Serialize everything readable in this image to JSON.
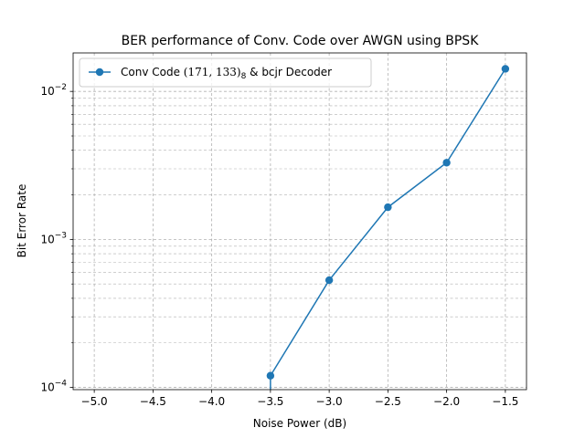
{
  "chart_data": {
    "type": "line",
    "title": "BER performance of Conv. Code over AWGN using BPSK",
    "xlabel": "Noise Power (dB)",
    "ylabel": "Bit Error Rate",
    "x_scale": "linear",
    "y_scale": "log",
    "xlim": [
      -5.18,
      -1.32
    ],
    "ylim": [
      9.66e-05,
      0.0182
    ],
    "x_ticks": [
      -5.0,
      -4.5,
      -4.0,
      -3.5,
      -3.0,
      -2.5,
      -2.0,
      -1.5
    ],
    "x_tick_labels": [
      "−5.0",
      "−4.5",
      "−4.0",
      "−3.5",
      "−3.0",
      "−2.5",
      "−2.0",
      "−1.5"
    ],
    "y_major_ticks": [
      0.0001,
      0.001,
      0.01
    ],
    "y_tick_labels": [
      {
        "base": "10",
        "exp": "−4"
      },
      {
        "base": "10",
        "exp": "−3"
      },
      {
        "base": "10",
        "exp": "−2"
      }
    ],
    "grid": {
      "major": true,
      "minor": true,
      "style": "dashed",
      "color": "#b0b0b0"
    },
    "legend": {
      "placement": "top-left",
      "entries": [
        {
          "prefix": "Conv Code ",
          "math": "(171, 133)",
          "subscript": "8",
          "suffix": " & bcjr Decoder"
        }
      ]
    },
    "series": [
      {
        "name": "Conv Code (171, 133)8 & bcjr Decoder",
        "color": "#1f77b4",
        "marker": "circle",
        "x": [
          -3.5,
          -3.0,
          -2.5,
          -2.0,
          -1.5
        ],
        "y": [
          0.00012,
          0.00053,
          0.00165,
          0.0033,
          0.0142
        ]
      }
    ],
    "extra_segment": {
      "from": {
        "x": -3.5,
        "y": 0.00012
      },
      "to_bottom_edge": true
    }
  }
}
